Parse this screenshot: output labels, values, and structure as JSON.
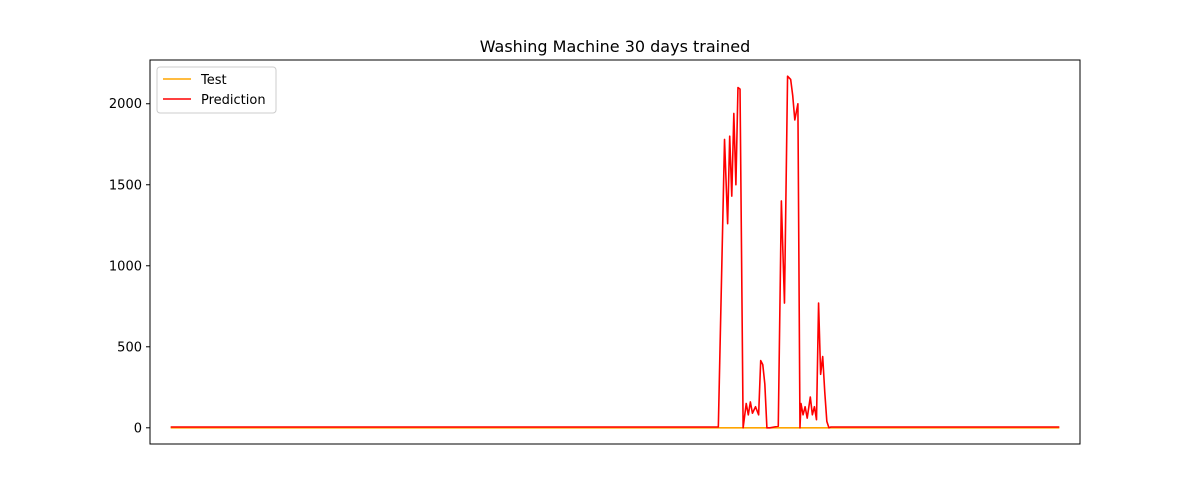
{
  "chart_data": {
    "type": "line",
    "title": "Washing Machine 30 days trained",
    "xlabel": "",
    "ylabel": "",
    "x_ticks_visible": false,
    "xlim": [
      -1,
      44
    ],
    "ylim": [
      -100,
      2270
    ],
    "yticks": [
      0,
      500,
      1000,
      1500,
      2000
    ],
    "ytick_labels": [
      "0",
      "500",
      "1000",
      "1500",
      "2000"
    ],
    "grid": false,
    "legend": {
      "position": "top-left",
      "entries": [
        "Test",
        "Prediction"
      ]
    },
    "series": [
      {
        "name": "Test",
        "color": "#ffa500",
        "x": [
          0,
          43
        ],
        "y": [
          0,
          0
        ]
      },
      {
        "name": "Prediction",
        "color": "#ff0000",
        "x": [
          0,
          26.5,
          26.8,
          26.95,
          27.05,
          27.15,
          27.25,
          27.35,
          27.45,
          27.55,
          27.7,
          27.85,
          27.95,
          28.05,
          28.15,
          28.3,
          28.45,
          28.55,
          28.65,
          28.75,
          28.85,
          29.0,
          29.2,
          29.4,
          29.55,
          29.7,
          29.85,
          30.0,
          30.1,
          30.2,
          30.35,
          30.45,
          30.5,
          30.6,
          30.7,
          30.8,
          30.95,
          31.05,
          31.15,
          31.25,
          31.35,
          31.45,
          31.55,
          31.65,
          31.75,
          31.85,
          31.95,
          32.05,
          32.15,
          32.25,
          32.4,
          32.55,
          32.7,
          33.0,
          43
        ],
        "y": [
          5,
          5,
          1780,
          1260,
          1800,
          1430,
          1940,
          1500,
          2100,
          2090,
          0,
          150,
          80,
          160,
          90,
          130,
          80,
          415,
          390,
          270,
          0,
          0,
          5,
          10,
          1400,
          770,
          2170,
          2150,
          2050,
          1900,
          2000,
          0,
          150,
          80,
          130,
          60,
          190,
          80,
          130,
          50,
          770,
          330,
          440,
          220,
          40,
          0,
          5,
          5,
          5,
          5,
          5,
          5,
          5,
          5,
          5
        ]
      }
    ]
  }
}
